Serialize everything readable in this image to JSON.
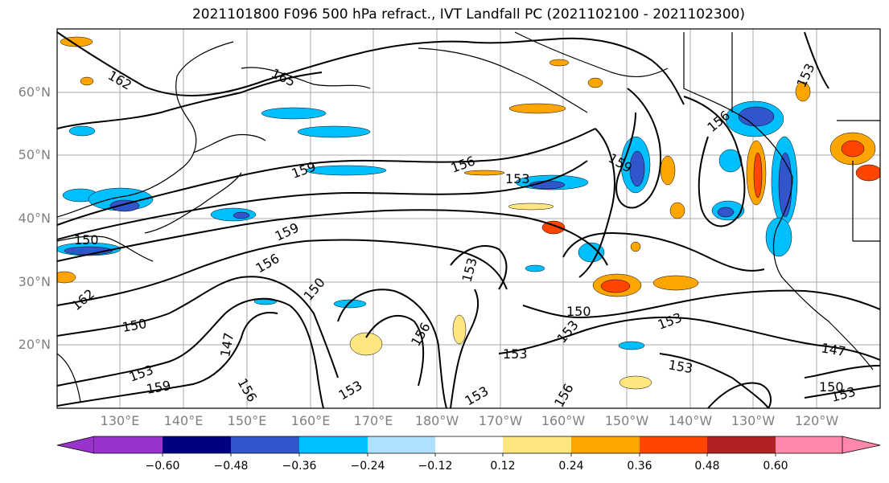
{
  "title": "2021101800 F096 500 hPa refract., IVT Landfall PC (2021102100 - 2021102300)",
  "lat_labels": [
    "60°N",
    "50°N",
    "40°N",
    "30°N",
    "20°N"
  ],
  "lon_labels": [
    "130°E",
    "140°E",
    "150°E",
    "160°E",
    "170°E",
    "180°W",
    "170°W",
    "160°W",
    "150°W",
    "140°W",
    "130°W",
    "120°W"
  ],
  "contour_labels": [
    "162",
    "165",
    "153",
    "156",
    "159",
    "153",
    "159",
    "156",
    "159",
    "153",
    "156",
    "150",
    "162",
    "150",
    "150",
    "147",
    "156",
    "153",
    "153",
    "150",
    "153",
    "153",
    "147",
    "150",
    "153",
    "156",
    "156",
    "153",
    "159",
    "153"
  ],
  "colorbar": {
    "ticks": [
      "−0.60",
      "−0.48",
      "−0.36",
      "−0.24",
      "−0.12",
      "0.12",
      "0.24",
      "0.36",
      "0.48",
      "0.60"
    ],
    "colors": [
      "#9933cc",
      "#000080",
      "#3355cc",
      "#00bfff",
      "#b0e0ff",
      "#ffffff",
      "#ffe680",
      "#ffa500",
      "#ff4500",
      "#b22222",
      "#ff88aa"
    ]
  }
}
